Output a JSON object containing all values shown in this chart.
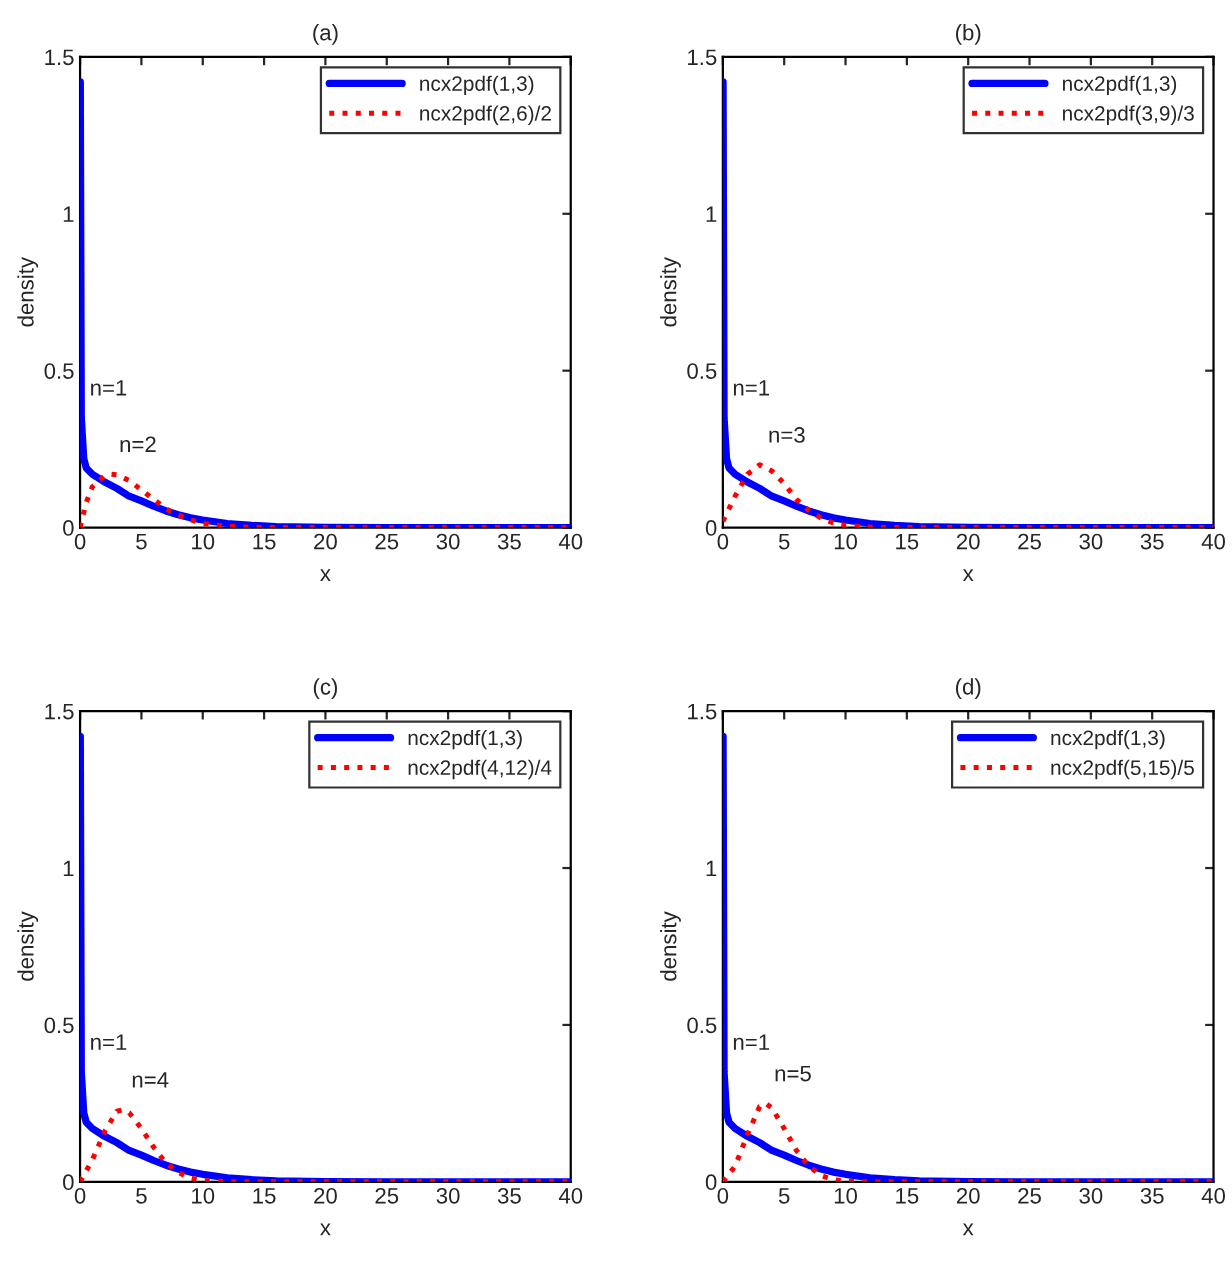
{
  "chart_data": [
    {
      "type": "line",
      "title": "(a)",
      "xlabel": "x",
      "ylabel": "density",
      "xlim": [
        0,
        40
      ],
      "xticks": [
        0,
        5,
        10,
        15,
        20,
        25,
        30,
        35,
        40
      ],
      "ylim": [
        0,
        1.5
      ],
      "yticks": [
        0,
        0.5,
        1,
        1.5
      ],
      "legend": "top right",
      "series": [
        {
          "name": "ncx2pdf(1,3)",
          "color": "#0000ff",
          "line_style": "solid",
          "x": [
            0.02,
            0.1,
            0.3,
            0.5,
            1,
            2,
            3,
            4,
            5,
            6,
            7,
            8,
            9,
            10,
            12,
            14,
            16,
            20,
            25,
            40
          ],
          "values": [
            1.42,
            0.35,
            0.22,
            0.19,
            0.17,
            0.145,
            0.125,
            0.1,
            0.085,
            0.068,
            0.053,
            0.041,
            0.031,
            0.024,
            0.013,
            0.007,
            0.003,
            0.001,
            0,
            0
          ]
        },
        {
          "name": "ncx2pdf(2,6)/2",
          "color": "#ff0000",
          "line_style": "dotted",
          "x": [
            0,
            0.5,
            1,
            2,
            2.5,
            3,
            4,
            5,
            6,
            7,
            8,
            9,
            10,
            12,
            14,
            16,
            40
          ],
          "values": [
            0,
            0.08,
            0.13,
            0.165,
            0.17,
            0.168,
            0.15,
            0.12,
            0.09,
            0.06,
            0.04,
            0.025,
            0.013,
            0.004,
            0.001,
            0,
            0
          ]
        }
      ],
      "annotations": [
        {
          "text": "n=1",
          "x": 0.1,
          "y": 0.35
        },
        {
          "text": "n=2",
          "x": 2.5,
          "y": 0.17
        }
      ]
    },
    {
      "type": "line",
      "title": "(b)",
      "xlabel": "x",
      "ylabel": "density",
      "xlim": [
        0,
        40
      ],
      "xticks": [
        0,
        5,
        10,
        15,
        20,
        25,
        30,
        35,
        40
      ],
      "ylim": [
        0,
        1.5
      ],
      "yticks": [
        0,
        0.5,
        1,
        1.5
      ],
      "legend": "top right",
      "series": [
        {
          "name": "ncx2pdf(1,3)",
          "color": "#0000ff",
          "line_style": "solid",
          "x": [
            0.02,
            0.1,
            0.3,
            0.5,
            1,
            2,
            3,
            4,
            5,
            6,
            7,
            8,
            9,
            10,
            12,
            14,
            16,
            20,
            25,
            40
          ],
          "values": [
            1.42,
            0.35,
            0.22,
            0.19,
            0.17,
            0.145,
            0.125,
            0.1,
            0.085,
            0.068,
            0.053,
            0.041,
            0.031,
            0.024,
            0.013,
            0.007,
            0.003,
            0.001,
            0,
            0
          ]
        },
        {
          "name": "ncx2pdf(3,9)/3",
          "color": "#ff0000",
          "line_style": "dotted",
          "x": [
            0,
            1,
            2,
            3,
            4,
            5,
            6,
            7,
            8,
            9,
            10,
            12,
            14,
            40
          ],
          "values": [
            0.02,
            0.1,
            0.17,
            0.2,
            0.18,
            0.14,
            0.09,
            0.055,
            0.03,
            0.015,
            0.007,
            0.001,
            0,
            0
          ]
        }
      ],
      "annotations": [
        {
          "text": "n=1",
          "x": 0.1,
          "y": 0.35
        },
        {
          "text": "n=3",
          "x": 3,
          "y": 0.2
        }
      ]
    },
    {
      "type": "line",
      "title": "(c)",
      "xlabel": "x",
      "ylabel": "density",
      "xlim": [
        0,
        40
      ],
      "xticks": [
        0,
        5,
        10,
        15,
        20,
        25,
        30,
        35,
        40
      ],
      "ylim": [
        0,
        1.5
      ],
      "yticks": [
        0,
        0.5,
        1,
        1.5
      ],
      "legend": "top right",
      "series": [
        {
          "name": "ncx2pdf(1,3)",
          "color": "#0000ff",
          "line_style": "solid",
          "x": [
            0.02,
            0.1,
            0.3,
            0.5,
            1,
            2,
            3,
            4,
            5,
            6,
            7,
            8,
            9,
            10,
            12,
            14,
            16,
            20,
            25,
            40
          ],
          "values": [
            1.42,
            0.35,
            0.22,
            0.19,
            0.17,
            0.145,
            0.125,
            0.1,
            0.085,
            0.068,
            0.053,
            0.041,
            0.031,
            0.024,
            0.013,
            0.007,
            0.003,
            0.001,
            0,
            0
          ]
        },
        {
          "name": "ncx2pdf(4,12)/4",
          "color": "#ff0000",
          "line_style": "dotted",
          "x": [
            0,
            1,
            2,
            3,
            3.5,
            4,
            5,
            6,
            7,
            8,
            9,
            10,
            12,
            40
          ],
          "values": [
            0,
            0.07,
            0.16,
            0.225,
            0.23,
            0.22,
            0.17,
            0.11,
            0.06,
            0.03,
            0.012,
            0.004,
            0,
            0
          ]
        }
      ],
      "annotations": [
        {
          "text": "n=1",
          "x": 0.1,
          "y": 0.35
        },
        {
          "text": "n=4",
          "x": 3.5,
          "y": 0.23
        }
      ]
    },
    {
      "type": "line",
      "title": "(d)",
      "xlabel": "x",
      "ylabel": "density",
      "xlim": [
        0,
        40
      ],
      "xticks": [
        0,
        5,
        10,
        15,
        20,
        25,
        30,
        35,
        40
      ],
      "ylim": [
        0,
        1.5
      ],
      "yticks": [
        0,
        0.5,
        1,
        1.5
      ],
      "legend": "top right",
      "series": [
        {
          "name": "ncx2pdf(1,3)",
          "color": "#0000ff",
          "line_style": "solid",
          "x": [
            0.02,
            0.1,
            0.3,
            0.5,
            1,
            2,
            3,
            4,
            5,
            6,
            7,
            8,
            9,
            10,
            12,
            14,
            16,
            20,
            25,
            40
          ],
          "values": [
            1.42,
            0.35,
            0.22,
            0.19,
            0.17,
            0.145,
            0.125,
            0.1,
            0.085,
            0.068,
            0.053,
            0.041,
            0.031,
            0.024,
            0.013,
            0.007,
            0.003,
            0.001,
            0,
            0
          ]
        },
        {
          "name": "ncx2pdf(5,15)/5",
          "color": "#ff0000",
          "line_style": "dotted",
          "x": [
            0,
            1,
            2,
            3,
            3.5,
            4,
            5,
            6,
            7,
            8,
            9,
            10,
            12,
            40
          ],
          "values": [
            0,
            0.05,
            0.15,
            0.24,
            0.25,
            0.235,
            0.17,
            0.1,
            0.05,
            0.02,
            0.007,
            0.002,
            0,
            0
          ]
        }
      ],
      "annotations": [
        {
          "text": "n=1",
          "x": 0.1,
          "y": 0.35
        },
        {
          "text": "n=5",
          "x": 3.5,
          "y": 0.25
        }
      ]
    }
  ]
}
